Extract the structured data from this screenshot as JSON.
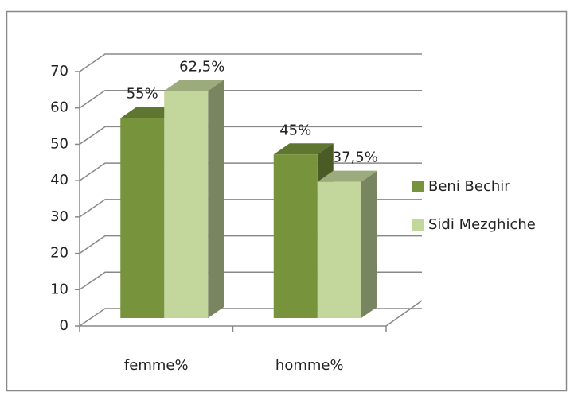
{
  "chart_data": {
    "type": "bar3d",
    "categories": [
      "femme%",
      "homme%"
    ],
    "series": [
      {
        "name": "Beni Bechir",
        "color": "#77933c",
        "values": [
          55,
          45
        ],
        "value_labels": [
          "55%",
          "45%"
        ]
      },
      {
        "name": "Sidi Mezghiche",
        "color": "#c3d69b",
        "values": [
          62.5,
          37.5
        ],
        "value_labels": [
          "62,5%",
          "37,5%"
        ]
      }
    ],
    "ylim": [
      0,
      70
    ],
    "yticks": [
      0,
      10,
      20,
      30,
      40,
      50,
      60,
      70
    ],
    "grid": true,
    "legend": "right"
  }
}
